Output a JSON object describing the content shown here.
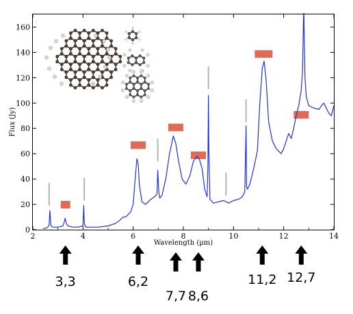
{
  "chart_data": {
    "type": "line",
    "title": "",
    "xlabel": "Wavelength (µm)",
    "ylabel": "Flux (Jy)",
    "xlim": [
      2,
      14
    ],
    "ylim": [
      0,
      170
    ],
    "xticks": [
      2,
      4,
      6,
      8,
      10,
      12,
      14
    ],
    "yticks": [
      0,
      20,
      40,
      60,
      80,
      100,
      120,
      140,
      160
    ],
    "grid": false,
    "line_color": "#1f2fe0",
    "series": [
      {
        "x": [
          2.4,
          2.5,
          2.6,
          2.65,
          2.68,
          2.72,
          2.8,
          3.0,
          3.2,
          3.25,
          3.29,
          3.33,
          3.4,
          3.6,
          3.8,
          4.0,
          4.03,
          4.05,
          4.08,
          4.12,
          4.3,
          4.6,
          5.0,
          5.3,
          5.5,
          5.6,
          5.7,
          5.8,
          5.9,
          6.0,
          6.1,
          6.15,
          6.2,
          6.25,
          6.35,
          6.5,
          6.7,
          6.85,
          6.95,
          6.98,
          7.02,
          7.06,
          7.15,
          7.3,
          7.45,
          7.6,
          7.7,
          7.8,
          7.95,
          8.1,
          8.25,
          8.4,
          8.55,
          8.65,
          8.75,
          8.85,
          8.95,
          8.98,
          9.0,
          9.02,
          9.06,
          9.2,
          9.4,
          9.6,
          9.8,
          10.0,
          10.2,
          10.35,
          10.45,
          10.5,
          10.52,
          10.56,
          10.65,
          10.8,
          10.95,
          11.05,
          11.15,
          11.22,
          11.3,
          11.4,
          11.55,
          11.7,
          11.9,
          12.0,
          12.1,
          12.2,
          12.3,
          12.4,
          12.5,
          12.6,
          12.7,
          12.75,
          12.8,
          12.85,
          12.9,
          13.0,
          13.2,
          13.4,
          13.6,
          13.8,
          13.9,
          14.0
        ],
        "y": [
          1,
          1,
          2,
          4,
          15,
          3,
          2,
          2,
          3,
          6,
          9,
          5,
          3,
          2,
          2,
          3,
          19,
          6,
          3,
          2,
          2,
          2,
          3,
          5,
          8,
          10,
          10,
          12,
          14,
          20,
          45,
          56,
          52,
          35,
          22,
          20,
          24,
          26,
          28,
          47,
          30,
          25,
          27,
          40,
          60,
          74,
          68,
          55,
          40,
          36,
          42,
          54,
          58,
          55,
          48,
          32,
          26,
          50,
          106,
          60,
          24,
          21,
          22,
          23,
          21,
          23,
          24,
          26,
          30,
          82,
          34,
          32,
          36,
          48,
          62,
          100,
          128,
          133,
          118,
          85,
          70,
          64,
          60,
          64,
          70,
          76,
          72,
          80,
          90,
          98,
          110,
          125,
          176,
          120,
          105,
          98,
          96,
          95,
          100,
          92,
          90,
          98
        ]
      }
    ],
    "peak_bars": [
      {
        "x": 3.3,
        "y": 20
      },
      {
        "x": 6.2,
        "y": 67
      },
      {
        "x": 7.7,
        "y": 81
      },
      {
        "x": 8.6,
        "y": 59
      },
      {
        "x": 11.2,
        "y": 139
      },
      {
        "x": 12.7,
        "y": 91
      }
    ],
    "line_markers": [
      {
        "x": 2.65,
        "y0": 19,
        "y1": 37
      },
      {
        "x": 4.05,
        "y0": 23,
        "y1": 41
      },
      {
        "x": 6.98,
        "y0": 54,
        "y1": 72
      },
      {
        "x": 9.0,
        "y0": 111,
        "y1": 129
      },
      {
        "x": 9.7,
        "y0": 27,
        "y1": 45
      },
      {
        "x": 10.5,
        "y0": 85,
        "y1": 103
      }
    ],
    "peak_labels": [
      {
        "label": "3,3",
        "x": 3.3
      },
      {
        "label": "6,2",
        "x": 6.2
      },
      {
        "label": "7,7",
        "x": 7.7
      },
      {
        "label": "8,6",
        "x": 8.6
      },
      {
        "label": "11,2",
        "x": 11.2
      },
      {
        "label": "12,7",
        "x": 12.7
      }
    ]
  }
}
